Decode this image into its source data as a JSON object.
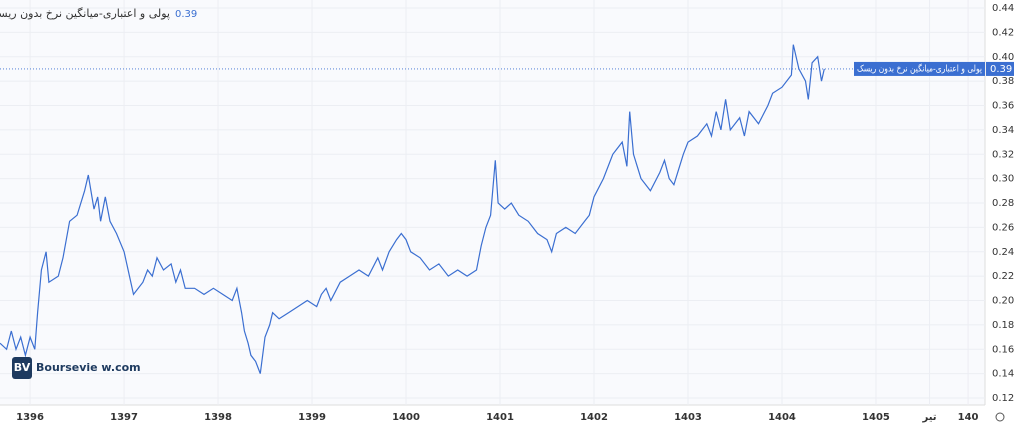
{
  "chart_data": {
    "type": "line",
    "title": "پولی و اعتباری-میانگین نرخ بدون ریسک",
    "last_value": 0.39,
    "watermark": "Boursevie w.com",
    "logo": "BV",
    "xlim": [
      1395.68,
      1406.16
    ],
    "xticks": [
      1396,
      1397,
      1398,
      1399,
      1400,
      1401,
      1402,
      1403,
      1404,
      1405,
      {
        "value": 1405.57,
        "label": "تیر"
      },
      {
        "value": 1405.98,
        "label": "140"
      }
    ],
    "ylim": [
      0.12,
      0.44
    ],
    "yticks": [
      {
        "value": 0.12,
        "label": "0.12"
      },
      0.14,
      0.16,
      0.18,
      {
        "value": 0.2,
        "label": "0.20"
      },
      0.22,
      0.24,
      0.26,
      0.28,
      {
        "value": 0.3,
        "label": "0.30"
      },
      0.32,
      0.34,
      0.36,
      0.38,
      {
        "value": 0.4,
        "label": "0.40"
      },
      0.42,
      0.44
    ],
    "grid": true,
    "series": [
      {
        "name": "پولی و اعتباری-میانگین نرخ بدون ریسک",
        "color": "#3b6fd1",
        "x": [
          1395.68,
          1395.75,
          1395.8,
          1395.85,
          1395.9,
          1395.95,
          1396.0,
          1396.05,
          1396.08,
          1396.12,
          1396.17,
          1396.2,
          1396.3,
          1396.35,
          1396.42,
          1396.5,
          1396.58,
          1396.62,
          1396.68,
          1396.72,
          1396.75,
          1396.8,
          1396.85,
          1396.92,
          1397.0,
          1397.1,
          1397.2,
          1397.25,
          1397.3,
          1397.35,
          1397.42,
          1397.5,
          1397.55,
          1397.6,
          1397.65,
          1397.75,
          1397.85,
          1397.95,
          1398.05,
          1398.15,
          1398.2,
          1398.25,
          1398.28,
          1398.32,
          1398.35,
          1398.4,
          1398.45,
          1398.5,
          1398.55,
          1398.58,
          1398.65,
          1398.75,
          1398.85,
          1398.95,
          1399.05,
          1399.1,
          1399.15,
          1399.2,
          1399.3,
          1399.4,
          1399.5,
          1399.6,
          1399.7,
          1399.75,
          1399.82,
          1399.9,
          1399.95,
          1400.0,
          1400.05,
          1400.15,
          1400.25,
          1400.35,
          1400.45,
          1400.55,
          1400.65,
          1400.75,
          1400.8,
          1400.85,
          1400.9,
          1400.95,
          1400.98,
          1401.05,
          1401.12,
          1401.2,
          1401.3,
          1401.4,
          1401.5,
          1401.55,
          1401.6,
          1401.7,
          1401.8,
          1401.9,
          1401.95,
          1402.0,
          1402.1,
          1402.2,
          1402.3,
          1402.35,
          1402.38,
          1402.42,
          1402.5,
          1402.6,
          1402.7,
          1402.75,
          1402.8,
          1402.85,
          1402.95,
          1403.0,
          1403.1,
          1403.2,
          1403.25,
          1403.3,
          1403.35,
          1403.4,
          1403.45,
          1403.55,
          1403.6,
          1403.65,
          1403.75,
          1403.85,
          1403.9,
          1404.0,
          1404.1,
          1404.12,
          1404.18,
          1404.25,
          1404.28,
          1404.32,
          1404.38,
          1404.42,
          1404.45
        ],
        "values": [
          0.165,
          0.16,
          0.175,
          0.16,
          0.17,
          0.155,
          0.17,
          0.16,
          0.19,
          0.225,
          0.24,
          0.215,
          0.22,
          0.235,
          0.265,
          0.27,
          0.29,
          0.303,
          0.275,
          0.285,
          0.265,
          0.285,
          0.265,
          0.255,
          0.24,
          0.205,
          0.215,
          0.225,
          0.22,
          0.235,
          0.225,
          0.23,
          0.215,
          0.225,
          0.21,
          0.21,
          0.205,
          0.21,
          0.205,
          0.2,
          0.21,
          0.19,
          0.175,
          0.165,
          0.155,
          0.15,
          0.14,
          0.17,
          0.18,
          0.19,
          0.185,
          0.19,
          0.195,
          0.2,
          0.195,
          0.205,
          0.21,
          0.2,
          0.215,
          0.22,
          0.225,
          0.22,
          0.235,
          0.225,
          0.24,
          0.25,
          0.255,
          0.25,
          0.24,
          0.235,
          0.225,
          0.23,
          0.22,
          0.225,
          0.22,
          0.225,
          0.245,
          0.26,
          0.27,
          0.315,
          0.28,
          0.275,
          0.28,
          0.27,
          0.265,
          0.255,
          0.25,
          0.24,
          0.255,
          0.26,
          0.255,
          0.265,
          0.27,
          0.285,
          0.3,
          0.32,
          0.33,
          0.31,
          0.355,
          0.32,
          0.3,
          0.29,
          0.305,
          0.315,
          0.3,
          0.295,
          0.32,
          0.33,
          0.335,
          0.345,
          0.335,
          0.355,
          0.34,
          0.365,
          0.34,
          0.35,
          0.335,
          0.355,
          0.345,
          0.36,
          0.37,
          0.375,
          0.385,
          0.41,
          0.39,
          0.38,
          0.365,
          0.395,
          0.4,
          0.38,
          0.39
        ]
      }
    ]
  }
}
